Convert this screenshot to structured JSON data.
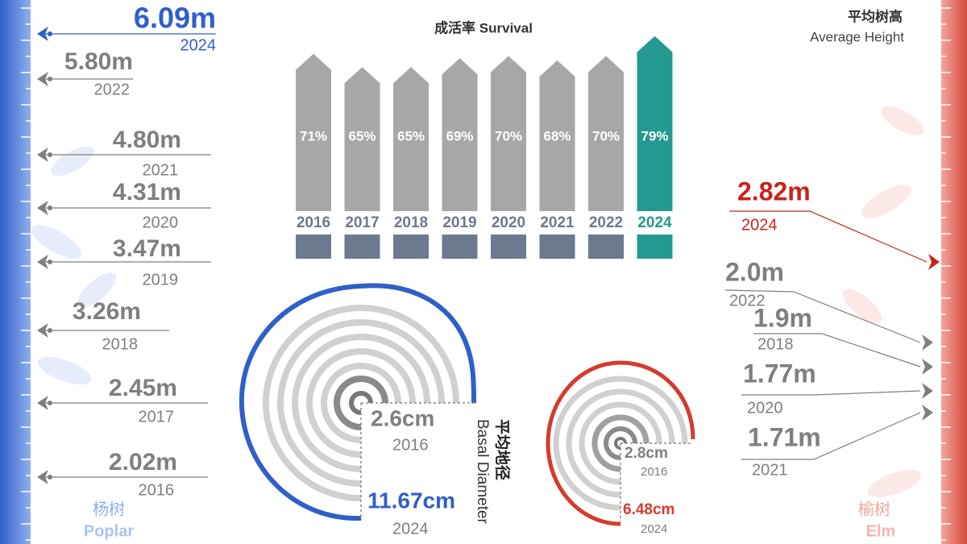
{
  "chart_data": {
    "type": "bar",
    "title": "成活率 Survival",
    "categories": [
      "2016",
      "2017",
      "2018",
      "2019",
      "2020",
      "2021",
      "2022",
      "2024"
    ],
    "values": [
      71,
      65,
      65,
      69,
      70,
      68,
      70,
      79
    ],
    "value_labels": [
      "71%",
      "65%",
      "65%",
      "69%",
      "70%",
      "68%",
      "70%",
      "79%"
    ],
    "colors": [
      "#a7a7a7",
      "#a7a7a7",
      "#a7a7a7",
      "#a7a7a7",
      "#a7a7a7",
      "#a7a7a7",
      "#a7a7a7",
      "#24998f"
    ],
    "ylim": [
      0,
      80
    ]
  },
  "height": {
    "title": "平均树高",
    "subtitle": "Average Height"
  },
  "poplar": {
    "name_cn": "杨树",
    "name_en": "Poplar",
    "heights": [
      {
        "value": "6.09m",
        "year": "2024"
      },
      {
        "value": "5.80m",
        "year": "2022"
      },
      {
        "value": "4.80m",
        "year": "2021"
      },
      {
        "value": "4.31m",
        "year": "2020"
      },
      {
        "value": "3.47m",
        "year": "2019"
      },
      {
        "value": "3.26m",
        "year": "2018"
      },
      {
        "value": "2.45m",
        "year": "2017"
      },
      {
        "value": "2.02m",
        "year": "2016"
      }
    ],
    "diameter": [
      {
        "value": "2.6cm",
        "year": "2016"
      },
      {
        "value": "11.67cm",
        "year": "2024"
      }
    ]
  },
  "elm": {
    "name_cn": "榆树",
    "name_en": "Elm",
    "heights": [
      {
        "value": "2.82m",
        "year": "2024"
      },
      {
        "value": "2.0m",
        "year": "2022"
      },
      {
        "value": "1.9m",
        "year": "2018"
      },
      {
        "value": "1.77m",
        "year": "2020"
      },
      {
        "value": "1.71m",
        "year": "2021"
      }
    ],
    "diameter": [
      {
        "value": "2.8cm",
        "year": "2016"
      },
      {
        "value": "6.48cm",
        "year": "2024"
      }
    ]
  },
  "diameter": {
    "title": "平均地径",
    "subtitle": "Basal Diameter"
  }
}
